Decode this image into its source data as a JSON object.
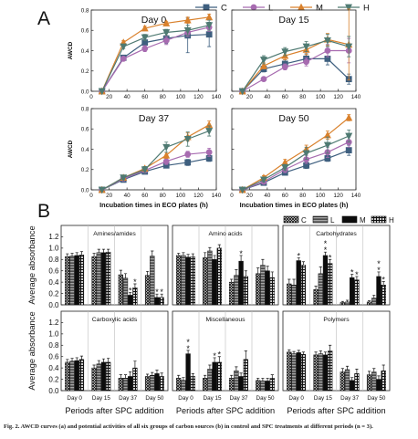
{
  "figure": {
    "caption": "Fig. 2. AWCD curves (a) and potential activities of all six groups of carbon sources (b) in control and SPC treatments at different periods (n = 3).",
    "colors": {
      "C": "#3e5f7f",
      "L": "#a76bb0",
      "M": "#d9812c",
      "H": "#4f7a72"
    }
  },
  "chart_data": [
    {
      "type": "line",
      "panel_letter": "A",
      "legend": [
        "C",
        "L",
        "M",
        "H"
      ],
      "legend_placement": "top-right",
      "xlabel": "Incubation times in ECO plates (h)",
      "ylabel": "AWCD",
      "xlim": [
        0,
        140
      ],
      "ylim": [
        0,
        0.8
      ],
      "xticks": [
        0,
        20,
        40,
        60,
        80,
        100,
        120,
        140
      ],
      "yticks": [
        0.0,
        0.2,
        0.4,
        0.6,
        0.8
      ],
      "x": [
        12,
        36,
        60,
        84,
        108,
        132
      ],
      "subplots": [
        {
          "title": "Day 0",
          "series": [
            {
              "name": "C",
              "values": [
                0.0,
                0.33,
                0.48,
                0.52,
                0.55,
                0.56
              ],
              "err": [
                0.01,
                0.02,
                0.04,
                0.05,
                0.17,
                0.12
              ]
            },
            {
              "name": "L",
              "values": [
                0.0,
                0.32,
                0.42,
                0.5,
                0.58,
                0.63
              ],
              "err": [
                0.01,
                0.02,
                0.03,
                0.04,
                0.04,
                0.04
              ]
            },
            {
              "name": "M",
              "values": [
                0.0,
                0.48,
                0.62,
                0.67,
                0.7,
                0.73
              ],
              "err": [
                0.01,
                0.02,
                0.02,
                0.02,
                0.03,
                0.03
              ]
            },
            {
              "name": "H",
              "values": [
                0.0,
                0.44,
                0.53,
                0.58,
                0.6,
                0.65
              ],
              "err": [
                0.01,
                0.02,
                0.03,
                0.03,
                0.05,
                0.05
              ]
            }
          ]
        },
        {
          "title": "Day 15",
          "series": [
            {
              "name": "C",
              "values": [
                0.0,
                0.22,
                0.27,
                0.32,
                0.32,
                0.12
              ],
              "err": [
                0.01,
                0.03,
                0.04,
                0.05,
                0.06,
                0.05
              ]
            },
            {
              "name": "L",
              "values": [
                0.0,
                0.12,
                0.24,
                0.29,
                0.4,
                0.4
              ],
              "err": [
                0.01,
                0.02,
                0.03,
                0.04,
                0.06,
                0.12
              ]
            },
            {
              "name": "M",
              "values": [
                0.0,
                0.25,
                0.35,
                0.41,
                0.51,
                0.46
              ],
              "err": [
                0.01,
                0.03,
                0.04,
                0.05,
                0.06,
                0.35
              ]
            },
            {
              "name": "H",
              "values": [
                0.0,
                0.31,
                0.39,
                0.44,
                0.5,
                0.44
              ],
              "err": [
                0.01,
                0.04,
                0.04,
                0.05,
                0.06,
                0.1
              ]
            }
          ]
        },
        {
          "title": "Day 37",
          "series": [
            {
              "name": "C",
              "values": [
                0.0,
                0.1,
                0.18,
                0.24,
                0.27,
                0.31
              ],
              "err": [
                0.01,
                0.01,
                0.02,
                0.02,
                0.03,
                0.03
              ]
            },
            {
              "name": "L",
              "values": [
                0.0,
                0.11,
                0.19,
                0.28,
                0.35,
                0.37
              ],
              "err": [
                0.01,
                0.01,
                0.02,
                0.03,
                0.03,
                0.04
              ]
            },
            {
              "name": "M",
              "values": [
                0.0,
                0.12,
                0.21,
                0.34,
                0.52,
                0.64
              ],
              "err": [
                0.01,
                0.01,
                0.02,
                0.03,
                0.04,
                0.04
              ]
            },
            {
              "name": "H",
              "values": [
                0.0,
                0.12,
                0.2,
                0.42,
                0.5,
                0.58
              ],
              "err": [
                0.01,
                0.02,
                0.03,
                0.05,
                0.07,
                0.05
              ]
            }
          ]
        },
        {
          "title": "Day 50",
          "series": [
            {
              "name": "C",
              "values": [
                0.0,
                0.07,
                0.17,
                0.24,
                0.31,
                0.39
              ],
              "err": [
                0.01,
                0.02,
                0.02,
                0.03,
                0.03,
                0.05
              ]
            },
            {
              "name": "L",
              "values": [
                0.0,
                0.08,
                0.2,
                0.3,
                0.37,
                0.47
              ],
              "err": [
                0.01,
                0.02,
                0.03,
                0.04,
                0.05,
                0.05
              ]
            },
            {
              "name": "M",
              "values": [
                0.0,
                0.12,
                0.27,
                0.4,
                0.54,
                0.71
              ],
              "err": [
                0.01,
                0.02,
                0.03,
                0.04,
                0.04,
                0.03
              ]
            },
            {
              "name": "H",
              "values": [
                0.0,
                0.1,
                0.22,
                0.36,
                0.44,
                0.53
              ],
              "err": [
                0.01,
                0.02,
                0.03,
                0.06,
                0.08,
                0.06
              ]
            }
          ]
        }
      ]
    },
    {
      "type": "bar",
      "panel_letter": "B",
      "legend": [
        "C",
        "L",
        "M",
        "H"
      ],
      "legend_placement": "top-right",
      "xlabel": "Periods after SPC addition",
      "ylabel": "Average absorbance",
      "categories": [
        "Day 0",
        "Day 15",
        "Day 37",
        "Day 50"
      ],
      "ylim": [
        0,
        1.4
      ],
      "yticks": [
        0.0,
        0.2,
        0.4,
        0.6,
        0.8,
        1.0,
        1.2
      ],
      "subplots": [
        {
          "title": "Amines/amides",
          "series": [
            {
              "name": "C",
              "values": [
                0.85,
                0.85,
                0.53,
                0.52
              ],
              "err": [
                0.05,
                0.06,
                0.08,
                0.07
              ]
            },
            {
              "name": "L",
              "values": [
                0.86,
                0.92,
                0.47,
                0.86
              ],
              "err": [
                0.05,
                0.06,
                0.08,
                0.09
              ]
            },
            {
              "name": "M",
              "values": [
                0.87,
                0.92,
                0.17,
                0.13
              ],
              "err": [
                0.05,
                0.06,
                0.05,
                0.06
              ]
            },
            {
              "name": "H",
              "values": [
                0.88,
                0.93,
                0.3,
                0.13
              ],
              "err": [
                0.06,
                0.05,
                0.07,
                0.06
              ]
            }
          ],
          "stars": [
            {
              "category": "Day 37",
              "series": "M",
              "text": "*"
            },
            {
              "category": "Day 37",
              "series": "H",
              "text": "*"
            },
            {
              "category": "Day 50",
              "series": "M",
              "text": "*"
            },
            {
              "category": "Day 50",
              "series": "H",
              "text": "*"
            }
          ]
        },
        {
          "title": "Amino acids",
          "series": [
            {
              "name": "C",
              "values": [
                0.87,
                0.83,
                0.4,
                0.55
              ],
              "err": [
                0.04,
                0.09,
                0.05,
                0.1
              ]
            },
            {
              "name": "L",
              "values": [
                0.87,
                0.95,
                0.52,
                0.7
              ],
              "err": [
                0.05,
                0.06,
                0.1,
                0.1
              ]
            },
            {
              "name": "M",
              "values": [
                0.84,
                0.8,
                0.77,
                0.6
              ],
              "err": [
                0.05,
                0.07,
                0.1,
                0.08
              ]
            },
            {
              "name": "H",
              "values": [
                0.85,
                1.0,
                0.5,
                0.48
              ],
              "err": [
                0.05,
                0.06,
                0.1,
                0.1
              ]
            }
          ],
          "stars": [
            {
              "category": "Day 37",
              "series": "M",
              "text": "*"
            }
          ]
        },
        {
          "title": "Carbohydrates",
          "series": [
            {
              "name": "C",
              "values": [
                0.37,
                0.27,
                0.04,
                0.05
              ],
              "err": [
                0.08,
                0.06,
                0.02,
                0.02
              ]
            },
            {
              "name": "L",
              "values": [
                0.35,
                0.55,
                0.05,
                0.12
              ],
              "err": [
                0.1,
                0.12,
                0.03,
                0.05
              ]
            },
            {
              "name": "M",
              "values": [
                0.78,
                0.87,
                0.48,
                0.5
              ],
              "err": [
                0.05,
                0.06,
                0.06,
                0.08
              ]
            },
            {
              "name": "H",
              "values": [
                0.7,
                0.73,
                0.44,
                0.35
              ],
              "err": [
                0.06,
                0.07,
                0.06,
                0.06
              ]
            }
          ],
          "stars": [
            {
              "category": "Day 0",
              "series": "M",
              "text": "*"
            },
            {
              "category": "Day 15",
              "series": "M",
              "text": "*"
            },
            {
              "category": "Day 15",
              "series": "M",
              "text": "*"
            },
            {
              "category": "Day 15",
              "series": "H",
              "text": "*"
            },
            {
              "category": "Day 37",
              "series": "M",
              "text": "*"
            },
            {
              "category": "Day 37",
              "series": "H",
              "text": "*"
            },
            {
              "category": "Day 50",
              "series": "M",
              "text": "*"
            },
            {
              "category": "Day 50",
              "series": "M",
              "text": "*"
            },
            {
              "category": "Day 50",
              "series": "H",
              "text": "*"
            }
          ]
        },
        {
          "title": "Carboxylic acids",
          "series": [
            {
              "name": "C",
              "values": [
                0.5,
                0.4,
                0.22,
                0.25
              ],
              "err": [
                0.05,
                0.05,
                0.06,
                0.04
              ]
            },
            {
              "name": "L",
              "values": [
                0.52,
                0.47,
                0.22,
                0.27
              ],
              "err": [
                0.05,
                0.06,
                0.06,
                0.05
              ]
            },
            {
              "name": "M",
              "values": [
                0.53,
                0.5,
                0.25,
                0.3
              ],
              "err": [
                0.05,
                0.06,
                0.08,
                0.06
              ]
            },
            {
              "name": "H",
              "values": [
                0.55,
                0.5,
                0.4,
                0.25
              ],
              "err": [
                0.06,
                0.07,
                0.12,
                0.06
              ]
            }
          ],
          "stars": []
        },
        {
          "title": "Miscellaneous",
          "series": [
            {
              "name": "C",
              "values": [
                0.22,
                0.22,
                0.22,
                0.18
              ],
              "err": [
                0.05,
                0.05,
                0.05,
                0.04
              ]
            },
            {
              "name": "L",
              "values": [
                0.18,
                0.38,
                0.35,
                0.17
              ],
              "err": [
                0.05,
                0.07,
                0.07,
                0.05
              ]
            },
            {
              "name": "M",
              "values": [
                0.65,
                0.5,
                0.25,
                0.17
              ],
              "err": [
                0.06,
                0.08,
                0.06,
                0.05
              ]
            },
            {
              "name": "H",
              "values": [
                0.25,
                0.5,
                0.55,
                0.22
              ],
              "err": [
                0.05,
                0.1,
                0.15,
                0.06
              ]
            }
          ],
          "stars": [
            {
              "category": "Day 0",
              "series": "M",
              "text": "*"
            },
            {
              "category": "Day 0",
              "series": "M",
              "text": "*"
            },
            {
              "category": "Day 15",
              "series": "M",
              "text": "*"
            },
            {
              "category": "Day 15",
              "series": "H",
              "text": "*"
            }
          ]
        },
        {
          "title": "Polymers",
          "series": [
            {
              "name": "C",
              "values": [
                0.68,
                0.63,
                0.33,
                0.28
              ],
              "err": [
                0.04,
                0.05,
                0.06,
                0.06
              ]
            },
            {
              "name": "L",
              "values": [
                0.65,
                0.65,
                0.37,
                0.33
              ],
              "err": [
                0.04,
                0.05,
                0.06,
                0.06
              ]
            },
            {
              "name": "M",
              "values": [
                0.67,
                0.63,
                0.18,
                0.2
              ],
              "err": [
                0.04,
                0.05,
                0.05,
                0.06
              ]
            },
            {
              "name": "H",
              "values": [
                0.64,
                0.7,
                0.3,
                0.35
              ],
              "err": [
                0.04,
                0.1,
                0.08,
                0.1
              ]
            }
          ],
          "stars": []
        }
      ]
    }
  ]
}
